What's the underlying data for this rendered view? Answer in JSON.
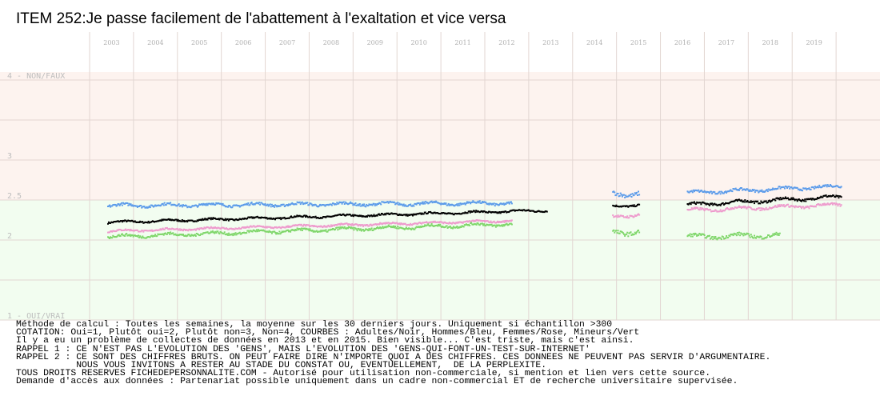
{
  "chart_data": {
    "type": "scatter",
    "title": "ITEM 252:Je passe facilement de l'abattement à l'exaltation et vice versa",
    "x_ticks": [
      "2003",
      "2004",
      "2005",
      "2006",
      "2007",
      "2008",
      "2009",
      "2010",
      "2011",
      "2012",
      "2013",
      "2014",
      "2015",
      "2016",
      "2017",
      "2018",
      "2019"
    ],
    "y_ticks": [
      {
        "value": 4,
        "label": "4 - NON/FAUX"
      },
      {
        "value": 3,
        "label": "3"
      },
      {
        "value": 2.5,
        "label": "2.5"
      },
      {
        "value": 2,
        "label": "2"
      },
      {
        "value": 1,
        "label": "1 - OUI/VRAI"
      }
    ],
    "ylim": [
      1,
      4
    ],
    "xlim": [
      2002.5,
      2020.5
    ],
    "grid": true,
    "background": {
      "above_2_5": "#fdf3ef",
      "below_2_5": "#f2fdf0",
      "grid": "#e2d6d2"
    },
    "series": [
      {
        "name": "Adultes",
        "color": "#000000",
        "segments": [
          {
            "x0": 2002.9,
            "x1": 2012.9,
            "y0": 2.23,
            "y1": 2.38,
            "amp": 0.02
          },
          {
            "x0": 2014.4,
            "x1": 2015.0,
            "y0": 2.43,
            "y1": 2.45,
            "amp": 0.02
          },
          {
            "x0": 2016.1,
            "x1": 2019.6,
            "y0": 2.45,
            "y1": 2.55,
            "amp": 0.03
          }
        ]
      },
      {
        "name": "Hommes",
        "color": "#5b9bea",
        "segments": [
          {
            "x0": 2002.9,
            "x1": 2012.1,
            "y0": 2.44,
            "y1": 2.47,
            "amp": 0.03
          },
          {
            "x0": 2014.4,
            "x1": 2015.0,
            "y0": 2.58,
            "y1": 2.6,
            "amp": 0.05
          },
          {
            "x0": 2016.1,
            "x1": 2019.6,
            "y0": 2.6,
            "y1": 2.68,
            "amp": 0.03
          }
        ]
      },
      {
        "name": "Femmes",
        "color": "#ee9bcd",
        "segments": [
          {
            "x0": 2002.9,
            "x1": 2012.1,
            "y0": 2.12,
            "y1": 2.25,
            "amp": 0.02
          },
          {
            "x0": 2014.4,
            "x1": 2015.0,
            "y0": 2.3,
            "y1": 2.33,
            "amp": 0.03
          },
          {
            "x0": 2016.1,
            "x1": 2019.6,
            "y0": 2.38,
            "y1": 2.45,
            "amp": 0.03
          }
        ]
      },
      {
        "name": "Mineurs",
        "color": "#7fd66a",
        "segments": [
          {
            "x0": 2002.9,
            "x1": 2012.1,
            "y0": 2.05,
            "y1": 2.21,
            "amp": 0.03
          },
          {
            "x0": 2014.4,
            "x1": 2015.0,
            "y0": 2.1,
            "y1": 2.12,
            "amp": 0.05
          },
          {
            "x0": 2016.1,
            "x1": 2018.2,
            "y0": 2.05,
            "y1": 2.07,
            "amp": 0.04
          }
        ]
      }
    ]
  },
  "notes": [
    "Méthode de calcul : Toutes les semaines, la moyenne sur les 30 derniers jours. Uniquement si échantillon >300",
    "COTATION: Oui=1, Plutôt oui=2, Plutôt non=3, Non=4, COURBES : Adultes/Noir, Hommes/Bleu, Femmes/Rose, Mineurs/Vert",
    "Il y a eu un problème de collectes de données en 2013 et en 2015. Bien visible... C'est triste, mais c'est ainsi.",
    "RAPPEL 1 : CE N'EST PAS L'EVOLUTION DES 'GENS', MAIS L'EVOLUTION DES 'GENS-QUI-FONT-UN-TEST-SUR-INTERNET'",
    "RAPPEL 2 : CE SONT DES CHIFFRES BRUTS. ON PEUT FAIRE DIRE N'IMPORTE QUOI A DES CHIFFRES. CES DONNEES NE PEUVENT PAS SERVIR D'ARGUMENTAIRE.",
    "           NOUS VOUS INVITONS A RESTER AU STADE DU CONSTAT OU, EVENTUELLEMENT,  DE LA PERPLEXITE.",
    "TOUS DROITS RESERVES FICHEDEPERSONNALITE.COM - Autorisé pour utilisation non-commerciale, si mention et lien vers cette source.",
    "Demande d'accès aux données : Partenariat possible uniquement dans un cadre non-commercial ET de recherche universitaire supervisée."
  ]
}
